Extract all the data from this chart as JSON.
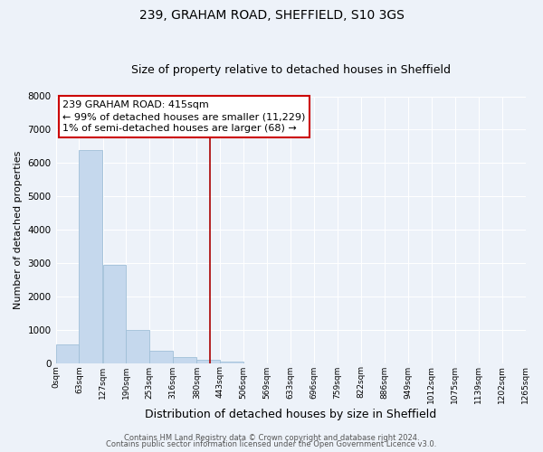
{
  "title1": "239, GRAHAM ROAD, SHEFFIELD, S10 3GS",
  "title2": "Size of property relative to detached houses in Sheffield",
  "xlabel": "Distribution of detached houses by size in Sheffield",
  "ylabel": "Number of detached properties",
  "bin_edges": [
    0,
    63,
    127,
    190,
    253,
    316,
    380,
    443,
    506,
    569,
    633,
    696,
    759,
    822,
    886,
    949,
    1012,
    1075,
    1139,
    1202,
    1265
  ],
  "bin_labels": [
    "0sqm",
    "63sqm",
    "127sqm",
    "190sqm",
    "253sqm",
    "316sqm",
    "380sqm",
    "443sqm",
    "506sqm",
    "569sqm",
    "633sqm",
    "696sqm",
    "759sqm",
    "822sqm",
    "886sqm",
    "949sqm",
    "1012sqm",
    "1075sqm",
    "1139sqm",
    "1202sqm",
    "1265sqm"
  ],
  "bar_heights": [
    550,
    6400,
    2950,
    1000,
    380,
    170,
    100,
    50,
    0,
    0,
    0,
    0,
    0,
    0,
    0,
    0,
    0,
    0,
    0,
    0
  ],
  "bar_color": "#c5d8ed",
  "bar_edgecolor": "#a0bfd8",
  "vline_x": 415,
  "vline_color": "#aa0000",
  "ylim": [
    0,
    8000
  ],
  "yticks": [
    0,
    1000,
    2000,
    3000,
    4000,
    5000,
    6000,
    7000,
    8000
  ],
  "annotation_title": "239 GRAHAM ROAD: 415sqm",
  "annotation_line1": "← 99% of detached houses are smaller (11,229)",
  "annotation_line2": "1% of semi-detached houses are larger (68) →",
  "annotation_box_color": "#cc0000",
  "footer1": "Contains HM Land Registry data © Crown copyright and database right 2024.",
  "footer2": "Contains public sector information licensed under the Open Government Licence v3.0.",
  "bg_color": "#edf2f9",
  "plot_bg_color": "#edf2f9",
  "grid_color": "#ffffff",
  "title1_fontsize": 10,
  "title2_fontsize": 9,
  "xlabel_fontsize": 9,
  "ylabel_fontsize": 8,
  "xtick_fontsize": 6.5,
  "ytick_fontsize": 7.5,
  "annotation_fontsize": 8,
  "footer_fontsize": 6
}
